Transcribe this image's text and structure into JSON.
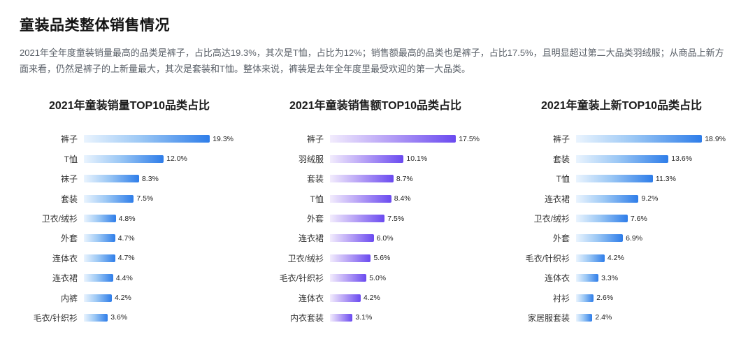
{
  "header": {
    "title": "童装品类整体销售情况",
    "description": "2021年全年度童装销量最高的品类是裤子，占比高达19.3%，其次是T恤，占比为12%；销售额最高的品类也是裤子，占比17.5%，且明显超过第二大品类羽绒服；从商品上新方面来看，仍然是裤子的上新量最大，其次是套装和T恤。整体来说，裤装是去年全年度里最受欢迎的第一大品类。"
  },
  "colors": {
    "bar_blue_start": "#eaf4fe",
    "bar_blue_end": "#2e7de9",
    "bar_purple_start": "#f2ecfd",
    "bar_purple_end": "#6a4af0",
    "text_dark": "#141414",
    "text_body": "#5a6068"
  },
  "chart_data": [
    {
      "type": "bar",
      "orientation": "horizontal",
      "title": "2021年童装销量TOP10品类占比",
      "categories": [
        "裤子",
        "T恤",
        "袜子",
        "套装",
        "卫衣/绒衫",
        "外套",
        "连体衣",
        "连衣裙",
        "内裤",
        "毛衣/针织衫"
      ],
      "values": [
        19.3,
        12.0,
        8.3,
        7.5,
        4.8,
        4.7,
        4.7,
        4.4,
        4.2,
        3.6
      ],
      "value_labels": [
        "19.3%",
        "12.0%",
        "8.3%",
        "7.5%",
        "4.8%",
        "4.7%",
        "4.7%",
        "4.4%",
        "4.2%",
        "3.6%"
      ],
      "value_suffix": "%",
      "palette": "blue",
      "xlim": [
        0,
        22.5
      ],
      "grid": false,
      "legend": false
    },
    {
      "type": "bar",
      "orientation": "horizontal",
      "title": "2021年童装销售额TOP10品类占比",
      "categories": [
        "裤子",
        "羽绒服",
        "套装",
        "T恤",
        "外套",
        "连衣裙",
        "卫衣/绒衫",
        "毛衣/针织衫",
        "连体衣",
        "内衣套装"
      ],
      "values": [
        17.5,
        10.1,
        8.7,
        8.4,
        7.5,
        6.0,
        5.6,
        5.0,
        4.2,
        3.1
      ],
      "value_labels": [
        "17.5%",
        "10.1%",
        "8.7%",
        "8.4%",
        "7.5%",
        "6.0%",
        "5.6%",
        "5.0%",
        "4.2%",
        "3.1%"
      ],
      "value_suffix": "%",
      "palette": "purple",
      "xlim": [
        0,
        20.5
      ],
      "grid": false,
      "legend": false
    },
    {
      "type": "bar",
      "orientation": "horizontal",
      "title": "2021年童装上新TOP10品类占比",
      "categories": [
        "裤子",
        "套装",
        "T恤",
        "连衣裙",
        "卫衣/绒衫",
        "外套",
        "毛衣/针织衫",
        "连体衣",
        "衬衫",
        "家居服套装"
      ],
      "values": [
        18.9,
        13.6,
        11.3,
        9.2,
        7.6,
        6.9,
        4.2,
        3.3,
        2.6,
        2.4
      ],
      "value_labels": [
        "18.9%",
        "13.6%",
        "11.3%",
        "9.2%",
        "7.6%",
        "6.9%",
        "4.2%",
        "3.3%",
        "2.6%",
        "2.4%"
      ],
      "value_suffix": "%",
      "palette": "blue",
      "xlim": [
        0,
        22
      ],
      "grid": false,
      "legend": false
    }
  ]
}
